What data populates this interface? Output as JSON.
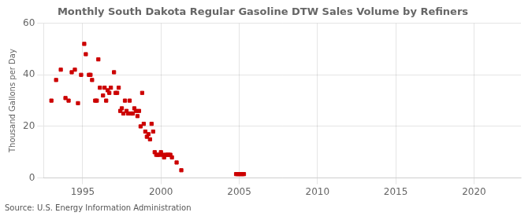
{
  "chart_data": {
    "type": "scatter",
    "title": "Monthly South Dakota Regular Gasoline DTW Sales Volume by Refiners",
    "y_label": "Thousand Gallons per Day",
    "annotations": [
      "Source: U.S. Energy Information Administration"
    ],
    "x": [
      1993.0,
      1993.3,
      1993.6,
      1993.9,
      1994.1,
      1994.3,
      1994.5,
      1994.7,
      1994.9,
      1995.1,
      1995.2,
      1995.4,
      1995.5,
      1995.6,
      1995.8,
      1995.9,
      1996.0,
      1996.1,
      1996.3,
      1996.4,
      1996.5,
      1996.6,
      1996.7,
      1996.8,
      1997.0,
      1997.1,
      1997.2,
      1997.3,
      1997.4,
      1997.5,
      1997.6,
      1997.7,
      1997.8,
      1997.9,
      1998.0,
      1998.1,
      1998.2,
      1998.3,
      1998.4,
      1998.5,
      1998.6,
      1998.7,
      1998.8,
      1998.9,
      1999.0,
      1999.1,
      1999.2,
      1999.3,
      1999.4,
      1999.5,
      1999.6,
      1999.7,
      1999.8,
      1999.9,
      2000.0,
      2000.1,
      2000.2,
      2000.3,
      2000.4,
      2000.5,
      2000.6,
      2000.7,
      2001.0,
      2001.3,
      2004.8,
      2004.9,
      2005.0,
      2005.1,
      2005.2,
      2005.3
    ],
    "values": [
      30.0,
      38.0,
      42.0,
      31.0,
      30.0,
      41.0,
      42.0,
      29.0,
      40.0,
      52.0,
      48.0,
      40.0,
      40.0,
      38.0,
      30.0,
      30.0,
      46.0,
      35.0,
      32.0,
      35.0,
      30.0,
      34.0,
      33.0,
      35.0,
      41.0,
      33.0,
      33.0,
      35.0,
      26.0,
      27.0,
      25.0,
      30.0,
      26.0,
      25.0,
      30.0,
      25.0,
      25.0,
      27.0,
      26.0,
      24.0,
      26.0,
      20.0,
      33.0,
      21.0,
      18.0,
      16.0,
      17.0,
      15.0,
      21.0,
      18.0,
      10.0,
      9.0,
      9.0,
      9.0,
      10.0,
      9.0,
      8.0,
      9.0,
      9.0,
      9.0,
      9.0,
      8.0,
      6.0,
      3.0,
      1.5,
      1.5,
      1.5,
      1.5,
      1.5,
      1.5
    ],
    "color": "#cc0000",
    "marker": "square",
    "xlim": [
      1992.5,
      2023
    ],
    "ylim": [
      0,
      60
    ],
    "xticks": [
      1995,
      2000,
      2005,
      2010,
      2015,
      2020
    ],
    "yticks": [
      0,
      20,
      40,
      60
    ],
    "grid": true
  }
}
